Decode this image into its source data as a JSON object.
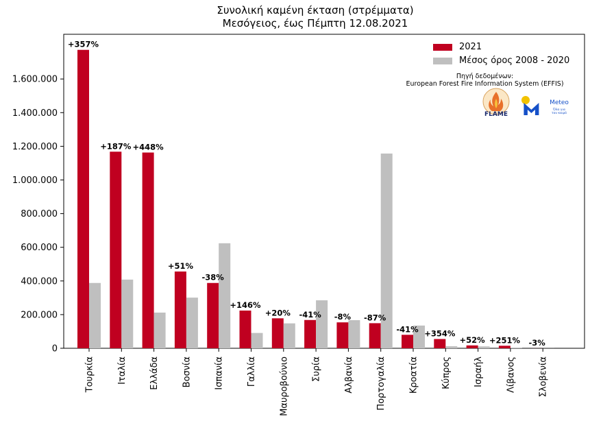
{
  "chart_data": {
    "type": "bar",
    "title": "Συνολική καμένη έκταση (στρέμματα)",
    "subtitle": "Μεσόγειος, έως Πέμπτη 12.08.2021",
    "xlabel": "",
    "ylabel": "",
    "ylim": [
      0,
      1800000
    ],
    "yticks": [
      0,
      200000,
      400000,
      600000,
      800000,
      1000000,
      1200000,
      1400000,
      1600000
    ],
    "ytick_labels": [
      "0",
      "200.000",
      "400.000",
      "600.000",
      "800.000",
      "1.000.000",
      "1.200.000",
      "1.400.000",
      "1.600.000"
    ],
    "categories": [
      "Τουρκία",
      "Ιταλία",
      "Ελλάδα",
      "Βοσνία",
      "Ισπανία",
      "Γαλλία",
      "Μαυροβούνιο",
      "Συρία",
      "Αλβανία",
      "Πορτογαλία",
      "Κροατία",
      "Κύπρος",
      "Ισραήλ",
      "Λίβανος",
      "Σλοβενία"
    ],
    "series": [
      {
        "name": "2021",
        "color": "#c00020",
        "values": [
          1773000,
          1168000,
          1163000,
          456000,
          388000,
          224000,
          178000,
          168000,
          154000,
          149000,
          80000,
          55000,
          17000,
          15000,
          300
        ]
      },
      {
        "name": "Μέσος όρος 2008 - 2020",
        "color": "#bfbfbf",
        "values": [
          388000,
          408000,
          212000,
          301000,
          624000,
          91000,
          148000,
          285000,
          167000,
          1157000,
          135000,
          12000,
          11000,
          4000,
          300
        ]
      }
    ],
    "annotations": [
      "+357%",
      "+187%",
      "+448%",
      "+51%",
      "-38%",
      "+146%",
      "+20%",
      "-41%",
      "-8%",
      "-87%",
      "-41%",
      "+354%",
      "+52%",
      "+251%",
      "-3%"
    ],
    "legend_position": "top-right",
    "grid": false
  },
  "source": {
    "line1": "Πηγή δεδομένων:",
    "line2": "European Forest Fire Information System (EFFIS)"
  },
  "logos": {
    "flame": "FLAME",
    "meteo": "Meteo",
    "meteo_tagline_1": "Όλα για",
    "meteo_tagline_2": "τον καιρό"
  }
}
